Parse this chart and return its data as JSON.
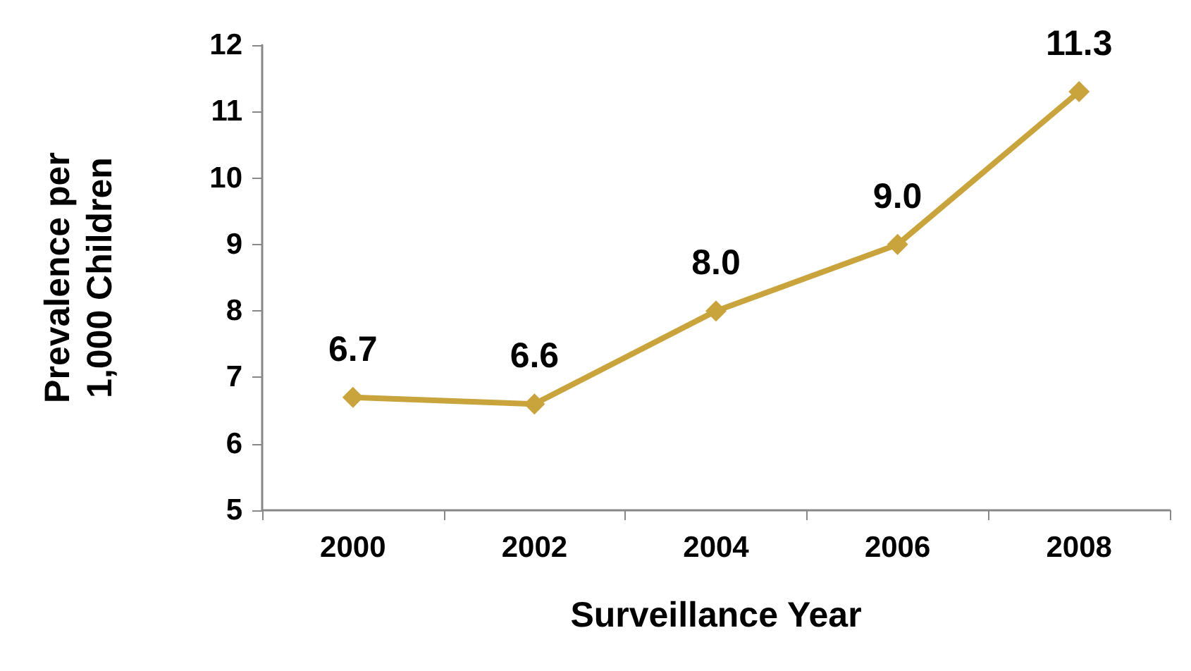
{
  "chart_data": {
    "type": "line",
    "xlabel": "Surveillance Year",
    "ylabel": "Prevalence per\n1,000 Children",
    "categories": [
      "2000",
      "2002",
      "2004",
      "2006",
      "2008"
    ],
    "series": [
      {
        "color": "#c9a43c",
        "values": [
          6.7,
          6.6,
          8.0,
          9.0,
          11.3
        ],
        "value_labels": [
          "6.7",
          "6.6",
          "8.0",
          "9.0",
          "11.3"
        ]
      }
    ],
    "ylim": [
      5,
      12
    ],
    "yticks": [
      5,
      6,
      7,
      8,
      9,
      10,
      11,
      12
    ],
    "marker": "diamond",
    "line_style": "solid"
  }
}
